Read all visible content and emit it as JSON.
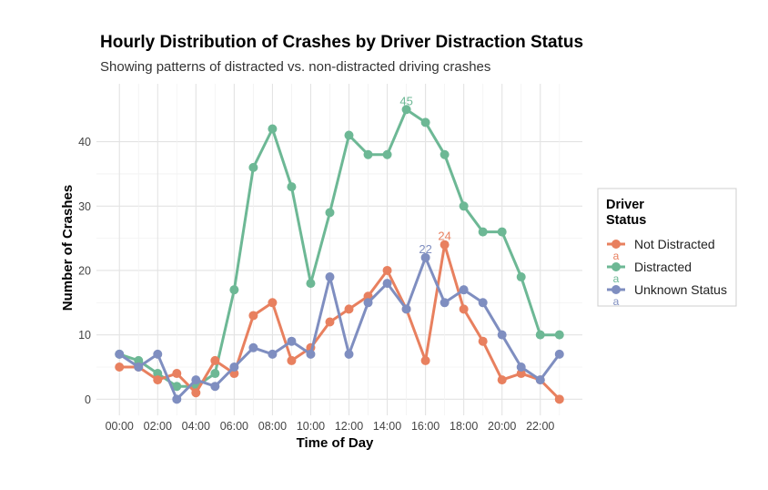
{
  "chart_data": {
    "type": "line",
    "title": "Hourly Distribution of Crashes by Driver Distraction Status",
    "subtitle": "Showing patterns of distracted vs. non-distracted driving crashes",
    "xlabel": "Time of Day",
    "ylabel": "Number of Crashes",
    "x": [
      0,
      1,
      2,
      3,
      4,
      5,
      6,
      7,
      8,
      9,
      10,
      11,
      12,
      13,
      14,
      15,
      16,
      17,
      18,
      19,
      20,
      21,
      22,
      23
    ],
    "xlim": [
      -1.2,
      24.2
    ],
    "ylim": [
      -2.5,
      49
    ],
    "x_ticks": [
      {
        "x": 0,
        "label": "00:00"
      },
      {
        "x": 2,
        "label": "02:00"
      },
      {
        "x": 4,
        "label": "04:00"
      },
      {
        "x": 6,
        "label": "06:00"
      },
      {
        "x": 8,
        "label": "08:00"
      },
      {
        "x": 10,
        "label": "10:00"
      },
      {
        "x": 12,
        "label": "12:00"
      },
      {
        "x": 14,
        "label": "14:00"
      },
      {
        "x": 16,
        "label": "16:00"
      },
      {
        "x": 18,
        "label": "18:00"
      },
      {
        "x": 20,
        "label": "20:00"
      },
      {
        "x": 22,
        "label": "22:00"
      }
    ],
    "y_ticks": [
      0,
      10,
      20,
      30,
      40
    ],
    "grid": true,
    "legend": {
      "title_lines": [
        "Driver",
        "Status"
      ],
      "position": "right",
      "key_glyph": "a"
    },
    "series": [
      {
        "name": "Not Distracted",
        "color": "#e8805f",
        "values": [
          5,
          5,
          3,
          4,
          1,
          6,
          4,
          13,
          15,
          6,
          8,
          12,
          14,
          16,
          20,
          14,
          6,
          24,
          14,
          9,
          3,
          4,
          3,
          0
        ]
      },
      {
        "name": "Distracted",
        "color": "#6db895",
        "values": [
          7,
          6,
          4,
          2,
          2,
          4,
          17,
          36,
          42,
          33,
          18,
          29,
          41,
          38,
          38,
          45,
          43,
          38,
          30,
          26,
          26,
          19,
          10,
          10
        ]
      },
      {
        "name": "Unknown Status",
        "color": "#7f8ec0",
        "values": [
          7,
          5,
          7,
          0,
          3,
          2,
          5,
          8,
          7,
          9,
          7,
          19,
          7,
          15,
          18,
          14,
          22,
          15,
          17,
          15,
          10,
          5,
          3,
          7
        ]
      }
    ],
    "annotations": [
      {
        "series": "Distracted",
        "x": 15,
        "y": 45,
        "text": "45"
      },
      {
        "series": "Not Distracted",
        "x": 17,
        "y": 24,
        "text": "24"
      },
      {
        "series": "Unknown Status",
        "x": 16,
        "y": 22,
        "text": "22"
      }
    ]
  }
}
